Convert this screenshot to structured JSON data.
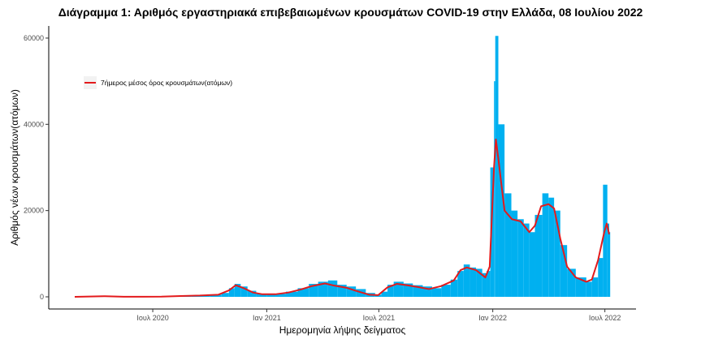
{
  "chart_data": {
    "type": "bar",
    "title": "Διάγραμμα 1: Αριθμός εργαστηριακά επιβεβαιωμένων κρουσμάτων COVID-19 στην Ελλάδα, 08 Ιουλίου 2022",
    "xlabel": "Ημερομηνία λήψης δείγματος",
    "ylabel": "Αριθμός νέων κρουσμάτων(ατόμων)",
    "ylim": [
      0,
      63000
    ],
    "xlim": [
      "2020-02-26",
      "2022-07-08"
    ],
    "y_ticks": [
      0,
      20000,
      40000,
      60000
    ],
    "y_tick_labels": [
      "0",
      "20000",
      "40000",
      "60000"
    ],
    "x_ticks": [
      "2020-07-01",
      "2021-01-01",
      "2021-07-01",
      "2022-01-01",
      "2022-07-01"
    ],
    "x_tick_labels": [
      "Ιουλ 2020",
      "Ιαν 2021",
      "Ιουλ 2021",
      "Ιαν 2022",
      "Ιουλ 2022"
    ],
    "grid": false,
    "legend_position": "top-left",
    "colors": {
      "bars": "#00b0f0",
      "line": "#e31a1c",
      "axis": "#000000"
    },
    "series": [
      {
        "type": "bar",
        "name": "",
        "points": [
          [
            "2020-02-26",
            0
          ],
          [
            "2020-04-01",
            80
          ],
          [
            "2020-05-01",
            20
          ],
          [
            "2020-06-01",
            10
          ],
          [
            "2020-07-01",
            30
          ],
          [
            "2020-08-01",
            200
          ],
          [
            "2020-09-01",
            300
          ],
          [
            "2020-10-01",
            500
          ],
          [
            "2020-10-20",
            900
          ],
          [
            "2020-11-01",
            2000
          ],
          [
            "2020-11-10",
            3000
          ],
          [
            "2020-11-20",
            2400
          ],
          [
            "2020-12-01",
            1400
          ],
          [
            "2020-12-15",
            700
          ],
          [
            "2021-01-01",
            500
          ],
          [
            "2021-01-15",
            700
          ],
          [
            "2021-02-01",
            1200
          ],
          [
            "2021-02-20",
            2000
          ],
          [
            "2021-03-10",
            3000
          ],
          [
            "2021-03-25",
            3500
          ],
          [
            "2021-04-10",
            3800
          ],
          [
            "2021-04-25",
            2800
          ],
          [
            "2021-05-10",
            2400
          ],
          [
            "2021-05-25",
            1800
          ],
          [
            "2021-06-10",
            900
          ],
          [
            "2021-06-25",
            500
          ],
          [
            "2021-07-05",
            1200
          ],
          [
            "2021-07-15",
            2800
          ],
          [
            "2021-07-25",
            3500
          ],
          [
            "2021-08-10",
            3100
          ],
          [
            "2021-08-25",
            2700
          ],
          [
            "2021-09-10",
            2400
          ],
          [
            "2021-09-25",
            2000
          ],
          [
            "2021-10-10",
            2800
          ],
          [
            "2021-10-25",
            4000
          ],
          [
            "2021-11-05",
            6000
          ],
          [
            "2021-11-15",
            7500
          ],
          [
            "2021-11-25",
            6800
          ],
          [
            "2021-12-05",
            6500
          ],
          [
            "2021-12-15",
            5500
          ],
          [
            "2021-12-22",
            6000
          ],
          [
            "2021-12-28",
            30000
          ],
          [
            "2022-01-03",
            50000
          ],
          [
            "2022-01-05",
            60500
          ],
          [
            "2022-01-10",
            40000
          ],
          [
            "2022-01-20",
            24000
          ],
          [
            "2022-01-31",
            20000
          ],
          [
            "2022-02-10",
            18000
          ],
          [
            "2022-02-20",
            17000
          ],
          [
            "2022-03-01",
            15000
          ],
          [
            "2022-03-10",
            19000
          ],
          [
            "2022-03-22",
            24000
          ],
          [
            "2022-04-01",
            23000
          ],
          [
            "2022-04-10",
            20000
          ],
          [
            "2022-04-20",
            12000
          ],
          [
            "2022-05-01",
            6500
          ],
          [
            "2022-05-15",
            4500
          ],
          [
            "2022-06-01",
            3500
          ],
          [
            "2022-06-10",
            4500
          ],
          [
            "2022-06-20",
            9000
          ],
          [
            "2022-06-28",
            26000
          ],
          [
            "2022-07-05",
            17000
          ],
          [
            "2022-07-08",
            15000
          ]
        ]
      },
      {
        "type": "line",
        "name": "7ήμερος μέσος όρος κρουσμάτων(ατόμων)",
        "points": [
          [
            "2020-02-26",
            0
          ],
          [
            "2020-04-15",
            150
          ],
          [
            "2020-05-15",
            30
          ],
          [
            "2020-06-15",
            20
          ],
          [
            "2020-07-15",
            50
          ],
          [
            "2020-08-15",
            200
          ],
          [
            "2020-09-15",
            300
          ],
          [
            "2020-10-15",
            500
          ],
          [
            "2020-11-01",
            1500
          ],
          [
            "2020-11-12",
            2700
          ],
          [
            "2020-11-25",
            2000
          ],
          [
            "2020-12-10",
            1000
          ],
          [
            "2020-12-25",
            600
          ],
          [
            "2021-01-15",
            600
          ],
          [
            "2021-02-05",
            1000
          ],
          [
            "2021-02-25",
            1700
          ],
          [
            "2021-03-15",
            2500
          ],
          [
            "2021-04-05",
            3100
          ],
          [
            "2021-04-20",
            2600
          ],
          [
            "2021-05-10",
            2100
          ],
          [
            "2021-05-25",
            1400
          ],
          [
            "2021-06-15",
            500
          ],
          [
            "2021-06-30",
            400
          ],
          [
            "2021-07-15",
            2200
          ],
          [
            "2021-07-30",
            3000
          ],
          [
            "2021-08-15",
            2700
          ],
          [
            "2021-09-01",
            2300
          ],
          [
            "2021-09-20",
            1800
          ],
          [
            "2021-10-10",
            2500
          ],
          [
            "2021-10-30",
            3800
          ],
          [
            "2021-11-10",
            6200
          ],
          [
            "2021-11-20",
            6800
          ],
          [
            "2021-12-05",
            6200
          ],
          [
            "2021-12-20",
            4500
          ],
          [
            "2021-12-27",
            7000
          ],
          [
            "2022-01-03",
            30000
          ],
          [
            "2022-01-06",
            36500
          ],
          [
            "2022-01-10",
            32000
          ],
          [
            "2022-01-20",
            20000
          ],
          [
            "2022-02-01",
            18000
          ],
          [
            "2022-02-15",
            17500
          ],
          [
            "2022-03-01",
            15000
          ],
          [
            "2022-03-10",
            16500
          ],
          [
            "2022-03-20",
            21000
          ],
          [
            "2022-04-01",
            21500
          ],
          [
            "2022-04-10",
            20500
          ],
          [
            "2022-04-20",
            13500
          ],
          [
            "2022-05-01",
            7000
          ],
          [
            "2022-05-15",
            4500
          ],
          [
            "2022-06-01",
            3500
          ],
          [
            "2022-06-10",
            4000
          ],
          [
            "2022-06-20",
            8500
          ],
          [
            "2022-06-30",
            15000
          ],
          [
            "2022-07-04",
            17000
          ],
          [
            "2022-07-08",
            14500
          ]
        ]
      }
    ]
  }
}
